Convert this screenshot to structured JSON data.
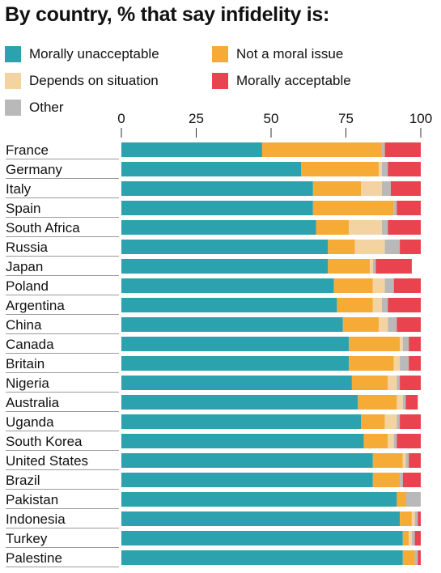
{
  "title": "By country, % that say infidelity is:",
  "legend": [
    {
      "name": "Morally unacceptable",
      "color": "#2ca2ae"
    },
    {
      "name": "Not a moral issue",
      "color": "#f5ab35"
    },
    {
      "name": "Depends on situation",
      "color": "#f3d3a1"
    },
    {
      "name": "Morally acceptable",
      "color": "#e8434e"
    },
    {
      "name": "Other",
      "color": "#b9b9b9"
    }
  ],
  "chart_data": {
    "type": "bar",
    "orientation": "horizontal",
    "stacked": true,
    "xlim": [
      0,
      100
    ],
    "xticks": [
      "0",
      "25",
      "50",
      "75",
      "100"
    ],
    "categories": [
      "France",
      "Germany",
      "Italy",
      "Spain",
      "South Africa",
      "Russia",
      "Japan",
      "Poland",
      "Argentina",
      "China",
      "Canada",
      "Britain",
      "Nigeria",
      "Australia",
      "Uganda",
      "South Korea",
      "United States",
      "Brazil",
      "Pakistan",
      "Indonesia",
      "Turkey",
      "Palestine"
    ],
    "series": [
      {
        "name": "Morally unacceptable",
        "color": "#2ca2ae",
        "values": [
          47,
          60,
          64,
          64,
          65,
          69,
          69,
          71,
          72,
          74,
          76,
          76,
          77,
          79,
          80,
          81,
          84,
          84,
          92,
          93,
          94,
          94
        ]
      },
      {
        "name": "Not a moral issue",
        "color": "#f5ab35",
        "values": [
          40,
          26,
          16,
          27,
          11,
          9,
          14,
          13,
          12,
          12,
          17,
          15,
          12,
          13,
          8,
          8,
          10,
          9,
          3,
          4,
          2,
          4
        ]
      },
      {
        "name": "Depends on situation",
        "color": "#f3d3a1",
        "values": [
          0,
          1,
          7,
          0,
          11,
          10,
          1,
          4,
          3,
          3,
          1,
          2,
          3,
          2,
          4,
          2,
          1,
          0,
          0,
          1,
          1,
          0
        ]
      },
      {
        "name": "Other",
        "color": "#b9b9b9",
        "values": [
          1,
          2,
          3,
          1,
          2,
          5,
          1,
          3,
          2,
          3,
          2,
          3,
          1,
          1,
          1,
          1,
          1,
          1,
          5,
          1,
          1,
          1
        ]
      },
      {
        "name": "Morally acceptable",
        "color": "#e8434e",
        "values": [
          12,
          11,
          10,
          8,
          11,
          7,
          12,
          9,
          11,
          8,
          4,
          4,
          7,
          4,
          7,
          8,
          4,
          6,
          0,
          1,
          2,
          1
        ]
      }
    ]
  }
}
